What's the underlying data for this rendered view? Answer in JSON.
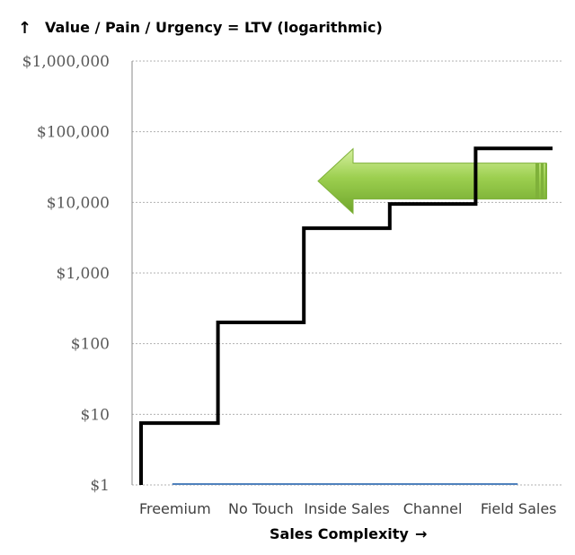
{
  "chart_data": {
    "type": "line",
    "step": true,
    "title": "Value / Pain / Urgency = LTV (logarithmic)",
    "title_arrow": "↑",
    "xlabel": "Sales Complexity",
    "xlabel_arrow": "→",
    "ylabel": "",
    "y_scale": "log",
    "ylim": [
      1,
      1000000
    ],
    "yticks": [
      {
        "value": 1,
        "label": "$1"
      },
      {
        "value": 10,
        "label": "$10"
      },
      {
        "value": 100,
        "label": "$100"
      },
      {
        "value": 1000,
        "label": "$1,000"
      },
      {
        "value": 10000,
        "label": "$10,000"
      },
      {
        "value": 100000,
        "label": "$100,000"
      },
      {
        "value": 1000000,
        "label": "$1,000,000"
      }
    ],
    "grid": "horizontal",
    "categories": [
      "Freemium",
      "No Touch",
      "Inside Sales",
      "Channel",
      "Field Sales"
    ],
    "series": [
      {
        "values": [
          7.5,
          200,
          4300,
          9500,
          58000
        ],
        "color": "#000000"
      },
      {
        "values": [
          1,
          1,
          1,
          1,
          1
        ],
        "color": "#4f81bd"
      }
    ],
    "annotation": {
      "shape": "left-arrow",
      "color": "#92d050",
      "y_value": 20000
    }
  }
}
